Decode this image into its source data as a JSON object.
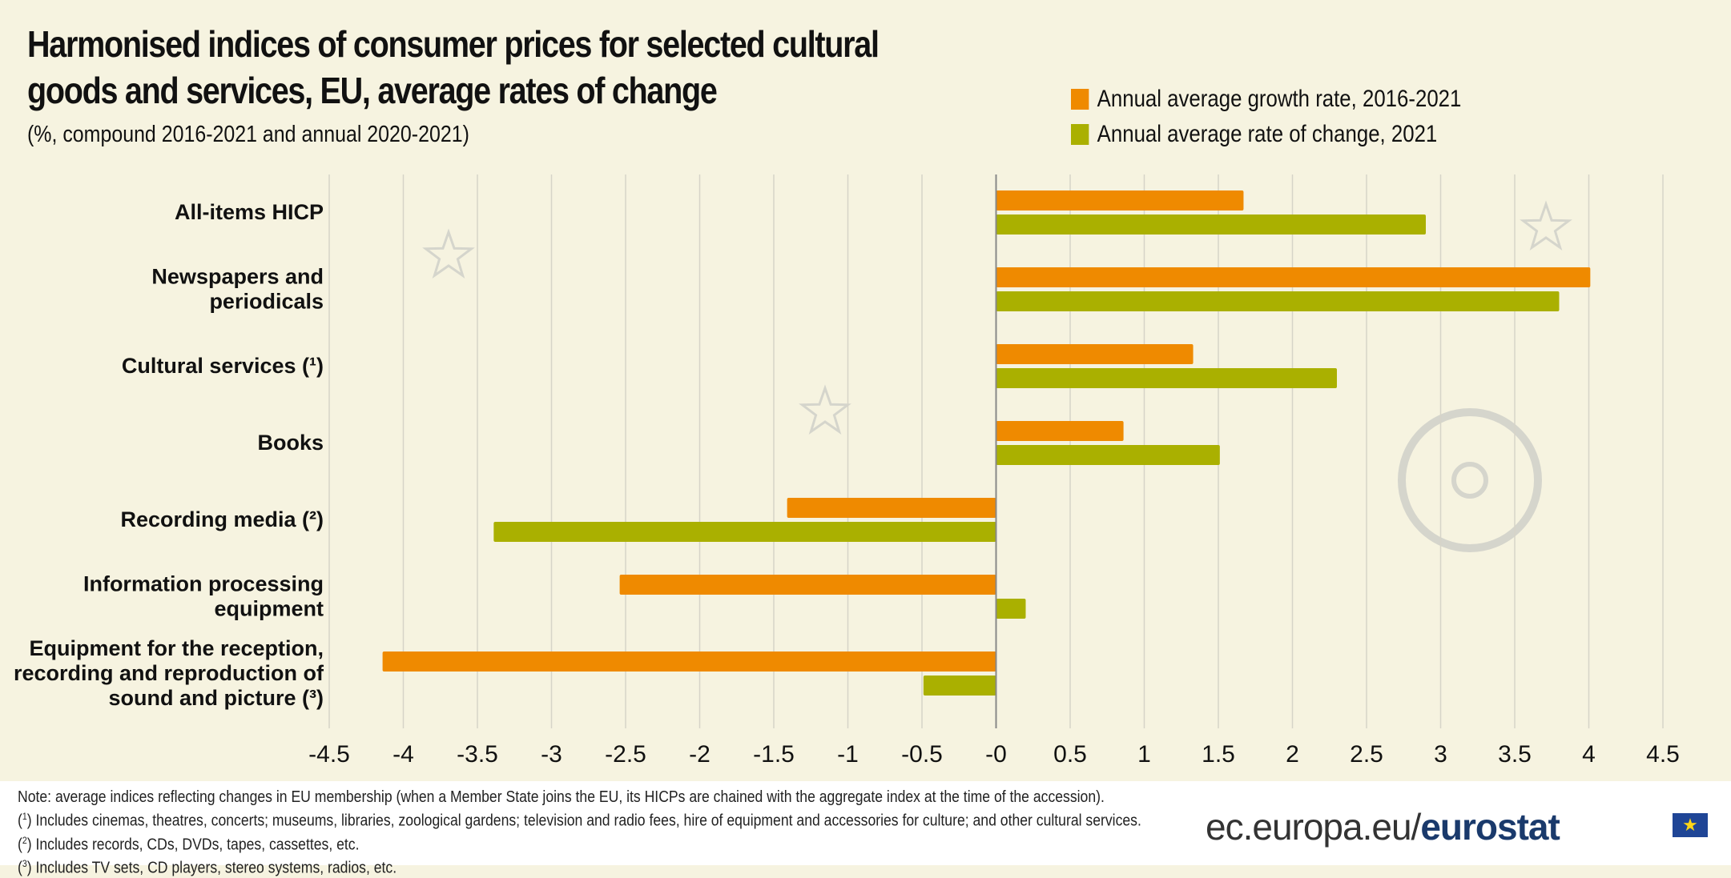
{
  "title": "Harmonised indices of consumer prices for selected cultural goods and services, EU, average rates of change",
  "subtitle": "(%, compound 2016-2021 and annual 2020-2021)",
  "colors": {
    "orange": "#ef8a00",
    "green": "#aab000",
    "background": "#f6f3e0",
    "grid": "#d6d4c8"
  },
  "chart_data": {
    "type": "bar",
    "orientation": "horizontal",
    "categories": [
      "All-items HICP",
      "Newspapers and periodicals",
      "Cultural services (¹)",
      "Books",
      "Recording media (²)",
      "Information processing equipment",
      "Equipment for the reception, recording and reproduction of sound and picture (³)"
    ],
    "category_lines": [
      [
        "All-items HICP"
      ],
      [
        "Newspapers and",
        "periodicals"
      ],
      [
        "Cultural services (¹)"
      ],
      [
        "Books"
      ],
      [
        "Recording media (²)"
      ],
      [
        "Information processing",
        "equipment"
      ],
      [
        "Equipment for the reception,",
        "recording and reproduction of",
        "sound and picture (³)"
      ]
    ],
    "series": [
      {
        "name": "Annual average growth rate, 2016-2021",
        "color": "#ef8a00",
        "values": [
          1.67,
          4.01,
          1.33,
          0.86,
          -1.41,
          -2.54,
          -4.14
        ]
      },
      {
        "name": "Annual average rate of change, 2021",
        "color": "#aab000",
        "values": [
          2.9,
          3.8,
          2.3,
          1.51,
          -3.39,
          0.2,
          -0.49
        ]
      }
    ],
    "xlim": [
      -4.5,
      4.5
    ],
    "xticks": [
      "-4.5",
      "-4",
      "-3.5",
      "-3",
      "-2.5",
      "-2",
      "-1.5",
      "-1",
      "-0.5",
      "-0",
      "0.5",
      "1",
      "1.5",
      "2",
      "2.5",
      "3",
      "3.5",
      "4",
      "4.5"
    ],
    "grid": true,
    "legend": "top-right"
  },
  "notes": {
    "main": "Note: average indices reflecting changes in EU membership (when a Member State joins the EU, its HICPs are chained with the aggregate index at the time of the accession).",
    "n1_mark": "1",
    "n1": ") Includes cinemas, theatres, concerts; museums, libraries, zoological gardens; television and radio fees, hire of equipment and accessories for culture; and other cultural services.",
    "n2_mark": "2",
    "n2": ") Includes records, CDs, DVDs, tapes, cassettes, etc.",
    "n3_mark": "3",
    "n3": ") Includes TV sets, CD players, stereo systems, radios, etc."
  },
  "brand": {
    "prefix": "ec.europa.eu/",
    "name": "eurostat",
    "flag": "★"
  }
}
